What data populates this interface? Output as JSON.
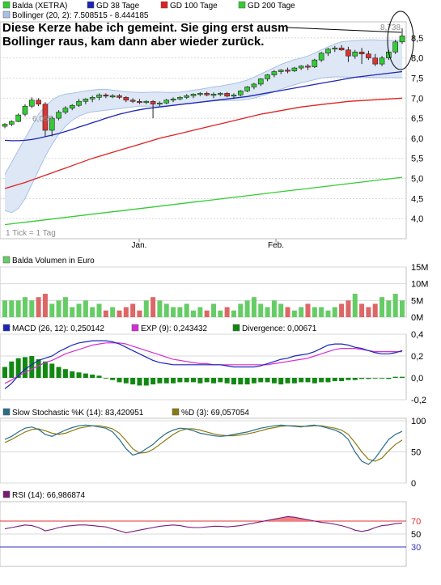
{
  "colors": {
    "price_up": "#33cc33",
    "price_down": "#dd3333",
    "gd38": "#1d24b5",
    "gd100": "#dd2222",
    "gd200": "#33cc33",
    "bollinger_fill": "#dde7f5",
    "bollinger_edge": "#a8c0e4",
    "volume_up": "#66cc66",
    "volume_down": "#dd6666",
    "macd": "#1d24b5",
    "ema": "#d42fd4",
    "divergence": "#118811",
    "stoch_k": "#2a6e88",
    "stoch_d": "#8a7a10",
    "rsi": "#7a1a7a",
    "rsi_70": "#e03030",
    "rsi_30": "#3030c0",
    "frame": "#c0c0c0"
  },
  "legends": {
    "price": [
      {
        "label": "Balda (XETRA)",
        "color": "#33cc33"
      },
      {
        "label": "GD 38 Tage",
        "color": "#1d24b5"
      },
      {
        "label": "GD 100 Tage",
        "color": "#dd2222"
      },
      {
        "label": "GD 200 Tage",
        "color": "#33cc33"
      }
    ],
    "bollinger": {
      "label": "Bollinger (20, 2): 7.508515 - 8.444185",
      "color": "#a8c0e4"
    },
    "volume": {
      "label": "Balda Volumen in Euro",
      "color": "#66cc66"
    },
    "macd": [
      {
        "label": "MACD (26, 12): 0,250142",
        "color": "#1d24b5"
      },
      {
        "label": "EXP (9): 0,243432",
        "color": "#d42fd4"
      },
      {
        "label": "Divergence: 0,00671",
        "color": "#118811"
      }
    ],
    "stoch": [
      {
        "label": "Slow Stochastic %K (14): 83,420951",
        "color": "#2a6e88"
      },
      {
        "label": "%D (3): 69,057054",
        "color": "#8a7a10"
      }
    ],
    "rsi": {
      "label": "RSI (14): 66,986874",
      "color": "#7a1a7a"
    }
  },
  "annotation": {
    "line1": "Diese Kerze habe ich gemeint. Sie ging erst ausm",
    "line2": "Bollinger raus, kam dann aber wieder zurück."
  },
  "price_labels": {
    "low": "6,055",
    "high": "8,738",
    "tick_note": "1 Tick = 1 Tag"
  },
  "x_labels": [
    "Jan.",
    "Feb."
  ],
  "chart_data": [
    {
      "type": "candlestick",
      "y_ticks": [
        "8,5",
        "8,0",
        "7,5",
        "7,0",
        "6,5",
        "6,0",
        "5,5",
        "5,0",
        "4,5",
        "4,0"
      ],
      "ylim": [
        3.5,
        8.9
      ],
      "n_days": 60,
      "ohlc": [
        [
          6.3,
          6.38,
          6.25,
          6.35
        ],
        [
          6.35,
          6.45,
          6.3,
          6.42
        ],
        [
          6.42,
          6.62,
          6.4,
          6.58
        ],
        [
          6.6,
          6.85,
          6.55,
          6.8
        ],
        [
          6.8,
          7.02,
          6.75,
          6.95
        ],
        [
          6.95,
          7.0,
          6.8,
          6.85
        ],
        [
          6.85,
          6.9,
          6.05,
          6.2
        ],
        [
          6.2,
          6.55,
          6.05,
          6.5
        ],
        [
          6.5,
          6.7,
          6.45,
          6.65
        ],
        [
          6.65,
          6.8,
          6.6,
          6.75
        ],
        [
          6.75,
          6.85,
          6.7,
          6.82
        ],
        [
          6.82,
          6.98,
          6.78,
          6.92
        ],
        [
          6.92,
          7.0,
          6.85,
          6.98
        ],
        [
          6.98,
          7.06,
          6.9,
          7.02
        ],
        [
          7.02,
          7.12,
          6.95,
          7.08
        ],
        [
          7.08,
          7.12,
          7.0,
          7.05
        ],
        [
          7.05,
          7.1,
          7.0,
          7.06
        ],
        [
          7.06,
          7.1,
          6.98,
          7.02
        ],
        [
          7.02,
          7.05,
          6.9,
          6.95
        ],
        [
          6.95,
          7.0,
          6.88,
          6.92
        ],
        [
          6.92,
          6.98,
          6.85,
          6.9
        ],
        [
          6.9,
          6.95,
          6.85,
          6.92
        ],
        [
          6.92,
          6.95,
          6.5,
          6.85
        ],
        [
          6.85,
          6.92,
          6.8,
          6.88
        ],
        [
          6.88,
          6.98,
          6.85,
          6.95
        ],
        [
          6.95,
          7.02,
          6.9,
          6.98
        ],
        [
          6.98,
          7.05,
          6.95,
          7.02
        ],
        [
          7.02,
          7.1,
          6.98,
          7.06
        ],
        [
          7.06,
          7.12,
          7.0,
          7.1
        ],
        [
          7.1,
          7.15,
          7.05,
          7.12
        ],
        [
          7.12,
          7.16,
          7.05,
          7.08
        ],
        [
          7.08,
          7.14,
          7.0,
          7.1
        ],
        [
          7.1,
          7.15,
          7.05,
          7.12
        ],
        [
          7.12,
          7.15,
          7.02,
          7.05
        ],
        [
          7.05,
          7.12,
          6.98,
          7.08
        ],
        [
          7.08,
          7.2,
          7.05,
          7.18
        ],
        [
          7.18,
          7.3,
          7.15,
          7.28
        ],
        [
          7.28,
          7.38,
          7.22,
          7.35
        ],
        [
          7.35,
          7.5,
          7.3,
          7.48
        ],
        [
          7.48,
          7.6,
          7.42,
          7.58
        ],
        [
          7.58,
          7.7,
          7.52,
          7.66
        ],
        [
          7.66,
          7.72,
          7.6,
          7.7
        ],
        [
          7.7,
          7.76,
          7.62,
          7.68
        ],
        [
          7.68,
          7.78,
          7.65,
          7.75
        ],
        [
          7.75,
          7.82,
          7.7,
          7.8
        ],
        [
          7.8,
          7.85,
          7.7,
          7.78
        ],
        [
          7.78,
          7.98,
          7.75,
          7.95
        ],
        [
          7.95,
          8.15,
          7.9,
          8.12
        ],
        [
          8.12,
          8.25,
          8.05,
          8.22
        ],
        [
          8.22,
          8.3,
          8.15,
          8.25
        ],
        [
          8.25,
          8.32,
          8.18,
          8.2
        ],
        [
          8.2,
          8.28,
          7.9,
          8.05
        ],
        [
          8.05,
          8.2,
          7.98,
          8.15
        ],
        [
          8.15,
          8.25,
          7.85,
          8.1
        ],
        [
          8.1,
          8.18,
          7.95,
          8.0
        ],
        [
          8.0,
          8.1,
          7.8,
          7.85
        ],
        [
          7.85,
          8.05,
          7.8,
          8.0
        ],
        [
          8.0,
          8.2,
          7.95,
          8.15
        ],
        [
          8.15,
          8.45,
          8.1,
          8.4
        ],
        [
          8.4,
          8.74,
          8.35,
          8.55
        ]
      ],
      "bollinger_upper": [
        5.1,
        5.4,
        5.7,
        6.0,
        6.3,
        6.6,
        6.8,
        6.95,
        7.05,
        7.1,
        7.12,
        7.15,
        7.18,
        7.2,
        7.22,
        7.22,
        7.2,
        7.18,
        7.16,
        7.15,
        7.14,
        7.14,
        7.15,
        7.15,
        7.14,
        7.14,
        7.15,
        7.17,
        7.2,
        7.22,
        7.25,
        7.28,
        7.3,
        7.33,
        7.36,
        7.4,
        7.45,
        7.52,
        7.6,
        7.68,
        7.76,
        7.84,
        7.9,
        7.96,
        8.0,
        8.05,
        8.12,
        8.2,
        8.28,
        8.35,
        8.4,
        8.42,
        8.43,
        8.44,
        8.45,
        8.45,
        8.44,
        8.44,
        8.44,
        8.44
      ],
      "bollinger_lower": [
        4.2,
        4.15,
        4.25,
        4.5,
        4.85,
        5.2,
        5.55,
        5.85,
        6.1,
        6.3,
        6.45,
        6.55,
        6.62,
        6.66,
        6.68,
        6.7,
        6.72,
        6.74,
        6.76,
        6.78,
        6.8,
        6.8,
        6.8,
        6.8,
        6.8,
        6.82,
        6.84,
        6.86,
        6.88,
        6.9,
        6.92,
        6.93,
        6.94,
        6.94,
        6.94,
        6.95,
        6.97,
        7.0,
        7.05,
        7.1,
        7.16,
        7.22,
        7.28,
        7.33,
        7.38,
        7.42,
        7.46,
        7.5,
        7.52,
        7.53,
        7.53,
        7.52,
        7.52,
        7.52,
        7.52,
        7.51,
        7.51,
        7.51,
        7.51,
        7.51
      ],
      "gd38": [
        5.95,
        5.94,
        5.94,
        5.95,
        5.97,
        6.0,
        6.04,
        6.08,
        6.12,
        6.17,
        6.22,
        6.28,
        6.33,
        6.39,
        6.44,
        6.5,
        6.55,
        6.6,
        6.64,
        6.68,
        6.71,
        6.74,
        6.76,
        6.78,
        6.8,
        6.82,
        6.84,
        6.86,
        6.88,
        6.9,
        6.92,
        6.94,
        6.96,
        6.98,
        7.0,
        7.02,
        7.04,
        7.07,
        7.1,
        7.13,
        7.16,
        7.19,
        7.22,
        7.25,
        7.28,
        7.31,
        7.34,
        7.37,
        7.4,
        7.43,
        7.46,
        7.49,
        7.52,
        7.54,
        7.56,
        7.58,
        7.6,
        7.62,
        7.64,
        7.66
      ],
      "gd100": [
        4.75,
        4.8,
        4.85,
        4.9,
        4.96,
        5.02,
        5.08,
        5.14,
        5.2,
        5.26,
        5.32,
        5.38,
        5.44,
        5.5,
        5.55,
        5.6,
        5.65,
        5.7,
        5.75,
        5.8,
        5.85,
        5.9,
        5.95,
        6.0,
        6.04,
        6.08,
        6.12,
        6.16,
        6.2,
        6.24,
        6.28,
        6.32,
        6.36,
        6.4,
        6.44,
        6.48,
        6.52,
        6.56,
        6.6,
        6.63,
        6.66,
        6.69,
        6.72,
        6.75,
        6.78,
        6.8,
        6.82,
        6.84,
        6.86,
        6.88,
        6.9,
        6.92,
        6.93,
        6.94,
        6.95,
        6.96,
        6.97,
        6.98,
        6.99,
        7.0
      ],
      "gd200": [
        3.85,
        3.87,
        3.89,
        3.91,
        3.93,
        3.95,
        3.97,
        3.99,
        4.01,
        4.03,
        4.05,
        4.07,
        4.09,
        4.11,
        4.13,
        4.15,
        4.17,
        4.19,
        4.21,
        4.23,
        4.25,
        4.27,
        4.29,
        4.31,
        4.33,
        4.35,
        4.37,
        4.39,
        4.41,
        4.43,
        4.45,
        4.47,
        4.49,
        4.51,
        4.53,
        4.55,
        4.57,
        4.59,
        4.61,
        4.63,
        4.65,
        4.67,
        4.69,
        4.71,
        4.73,
        4.75,
        4.77,
        4.79,
        4.81,
        4.83,
        4.85,
        4.87,
        4.89,
        4.91,
        4.93,
        4.95,
        4.97,
        4.99,
        5.01,
        5.03
      ]
    },
    {
      "type": "bar",
      "title": "Balda Volumen in Euro",
      "y_ticks": [
        "15M",
        "10M",
        "5M",
        "0M"
      ],
      "ylim": [
        0,
        15
      ],
      "values_millions": [
        5,
        5,
        5,
        6,
        5,
        6,
        7,
        4,
        5,
        6,
        3,
        4,
        5,
        3,
        4,
        2,
        3,
        2,
        3,
        4,
        2,
        5,
        6,
        5,
        4,
        3,
        3,
        4,
        2,
        3,
        2,
        4,
        2,
        3,
        2,
        4,
        5,
        6,
        4,
        3,
        5,
        4,
        3,
        2,
        3,
        4,
        3,
        3,
        2,
        3,
        4,
        5,
        7,
        4,
        3,
        4,
        6,
        5,
        7,
        5
      ]
    },
    {
      "type": "line",
      "title": "MACD",
      "y_ticks": [
        "0,4",
        "0,2",
        "0,0",
        "-0,2"
      ],
      "ylim": [
        -0.2,
        0.4
      ],
      "series": [
        {
          "name": "MACD (26, 12)",
          "values": [
            -0.1,
            -0.05,
            0.02,
            0.08,
            0.12,
            0.16,
            0.18,
            0.2,
            0.24,
            0.27,
            0.3,
            0.32,
            0.33,
            0.34,
            0.34,
            0.34,
            0.33,
            0.31,
            0.28,
            0.25,
            0.22,
            0.19,
            0.16,
            0.14,
            0.13,
            0.12,
            0.12,
            0.12,
            0.12,
            0.12,
            0.12,
            0.12,
            0.12,
            0.11,
            0.1,
            0.1,
            0.1,
            0.1,
            0.11,
            0.13,
            0.15,
            0.17,
            0.18,
            0.2,
            0.21,
            0.22,
            0.24,
            0.27,
            0.3,
            0.31,
            0.31,
            0.3,
            0.28,
            0.27,
            0.25,
            0.23,
            0.22,
            0.22,
            0.23,
            0.25
          ]
        },
        {
          "name": "EXP (9)",
          "values": [
            -0.05,
            -0.02,
            0.02,
            0.05,
            0.08,
            0.11,
            0.14,
            0.16,
            0.19,
            0.22,
            0.24,
            0.26,
            0.28,
            0.3,
            0.31,
            0.32,
            0.32,
            0.32,
            0.31,
            0.29,
            0.27,
            0.25,
            0.23,
            0.21,
            0.19,
            0.17,
            0.16,
            0.15,
            0.14,
            0.13,
            0.13,
            0.12,
            0.12,
            0.12,
            0.12,
            0.12,
            0.12,
            0.12,
            0.12,
            0.12,
            0.13,
            0.14,
            0.15,
            0.16,
            0.17,
            0.18,
            0.2,
            0.22,
            0.24,
            0.26,
            0.27,
            0.27,
            0.27,
            0.26,
            0.25,
            0.24,
            0.24,
            0.24,
            0.24,
            0.24
          ]
        },
        {
          "name": "Divergence",
          "values": [
            0.1,
            0.15,
            0.18,
            0.19,
            0.2,
            0.17,
            0.15,
            0.13,
            0.1,
            0.08,
            0.06,
            0.05,
            0.04,
            0.03,
            0.02,
            0.0,
            -0.02,
            -0.04,
            -0.05,
            -0.06,
            -0.07,
            -0.07,
            -0.06,
            -0.05,
            -0.05,
            -0.05,
            -0.04,
            -0.04,
            -0.04,
            -0.05,
            -0.04,
            -0.05,
            -0.04,
            -0.05,
            -0.06,
            -0.06,
            -0.06,
            -0.05,
            -0.04,
            -0.04,
            -0.05,
            -0.06,
            -0.05,
            -0.05,
            -0.04,
            -0.04,
            -0.05,
            -0.04,
            -0.04,
            -0.03,
            -0.03,
            -0.02,
            -0.02,
            -0.01,
            -0.01,
            0.0,
            0.0,
            -0.01,
            0.01,
            0.01
          ]
        }
      ]
    },
    {
      "type": "line",
      "title": "Slow Stochastic",
      "y_ticks": [
        "100",
        "50",
        "0"
      ],
      "ylim": [
        0,
        100
      ],
      "series": [
        {
          "name": "Slow Stochastic %K (14)",
          "values": [
            70,
            75,
            82,
            88,
            90,
            86,
            78,
            75,
            80,
            85,
            89,
            92,
            93,
            92,
            90,
            88,
            82,
            70,
            55,
            45,
            48,
            55,
            62,
            72,
            80,
            85,
            88,
            87,
            84,
            80,
            78,
            76,
            75,
            76,
            78,
            80,
            82,
            85,
            88,
            90,
            92,
            93,
            92,
            91,
            90,
            92,
            93,
            91,
            88,
            85,
            80,
            70,
            50,
            35,
            30,
            40,
            55,
            70,
            78,
            83
          ]
        },
        {
          "name": "%D (3)",
          "values": [
            65,
            70,
            76,
            82,
            86,
            87,
            84,
            80,
            78,
            80,
            84,
            88,
            90,
            92,
            92,
            90,
            87,
            80,
            68,
            55,
            48,
            49,
            54,
            62,
            70,
            78,
            84,
            87,
            87,
            85,
            82,
            79,
            77,
            76,
            76,
            77,
            79,
            81,
            84,
            87,
            89,
            91,
            92,
            92,
            91,
            91,
            92,
            92,
            90,
            88,
            85,
            78,
            65,
            50,
            38,
            35,
            40,
            52,
            62,
            69
          ]
        }
      ]
    },
    {
      "type": "line",
      "title": "RSI",
      "y_ticks": [
        "70",
        "50",
        "30"
      ],
      "ylim": [
        0,
        100
      ],
      "series": [
        {
          "name": "RSI (14)",
          "values": [
            58,
            60,
            62,
            64,
            63,
            60,
            55,
            57,
            60,
            62,
            63,
            64,
            64,
            63,
            62,
            61,
            58,
            55,
            52,
            54,
            56,
            58,
            60,
            62,
            63,
            64,
            63,
            61,
            60,
            60,
            61,
            62,
            62,
            61,
            62,
            63,
            65,
            67,
            69,
            71,
            73,
            75,
            77,
            76,
            74,
            72,
            70,
            68,
            67,
            65,
            63,
            60,
            56,
            54,
            56,
            60,
            63,
            64,
            66,
            67
          ]
        }
      ]
    }
  ]
}
